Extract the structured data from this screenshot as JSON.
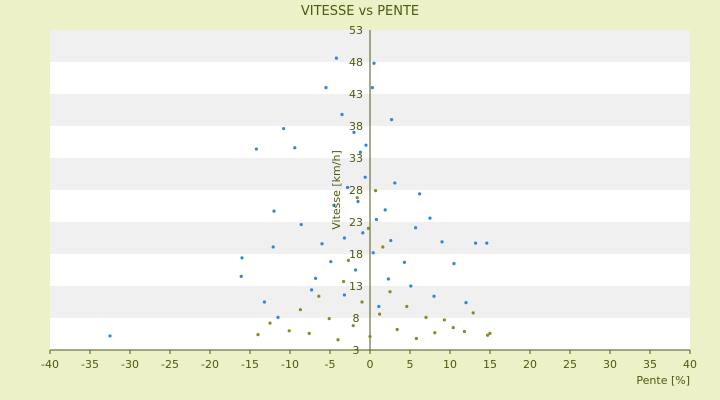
{
  "chart_data": {
    "type": "scatter",
    "title": "VITESSE vs PENTE",
    "xlabel": "Pente [%]",
    "ylabel": "Vitesse [km/h]",
    "xlim": [
      -40,
      40
    ],
    "ylim": [
      3,
      53
    ],
    "x_ticks": [
      "-40",
      "-35",
      "-30",
      "-25",
      "-20",
      "-15",
      "-10",
      "-5",
      "0",
      "5",
      "10",
      "15",
      "20",
      "25",
      "30",
      "35",
      "40"
    ],
    "y_ticks": [
      "3",
      "8",
      "13",
      "18",
      "23",
      "28",
      "33",
      "38",
      "43",
      "48",
      "53"
    ],
    "grid": "horizontal bands",
    "legend": "none",
    "colors": {
      "background": "#ecf1c8",
      "plot_band_light": "#ffffff",
      "plot_band_dark": "#f0f0f0",
      "axis": "#4c5a10",
      "series_blue": "#2f86d8",
      "series_olive": "#8a8a1c"
    },
    "series": [
      {
        "color": "#2f86d8",
        "points": [
          [
            -32.5,
            5.2
          ],
          [
            -14.2,
            34.4
          ],
          [
            -11.5,
            8.1
          ],
          [
            -10.8,
            37.6
          ],
          [
            -9.4,
            34.6
          ],
          [
            -6.8,
            14.2
          ],
          [
            -5.5,
            44.0
          ],
          [
            -4.2,
            48.6
          ],
          [
            -3.5,
            39.8
          ],
          [
            -2.0,
            37.0
          ],
          [
            -1.2,
            33.9
          ],
          [
            -0.5,
            35.0
          ],
          [
            0.5,
            47.8
          ],
          [
            0.3,
            44.0
          ],
          [
            2.7,
            39.0
          ],
          [
            -16.0,
            17.4
          ],
          [
            -16.1,
            14.5
          ],
          [
            -13.2,
            10.5
          ],
          [
            -12.0,
            24.7
          ],
          [
            -12.1,
            19.1
          ],
          [
            -8.6,
            22.6
          ],
          [
            -4.9,
            16.8
          ],
          [
            -3.2,
            20.5
          ],
          [
            -1.5,
            26.2
          ],
          [
            0.8,
            23.4
          ],
          [
            2.6,
            20.1
          ],
          [
            4.3,
            16.7
          ],
          [
            6.2,
            27.4
          ],
          [
            7.5,
            23.6
          ],
          [
            9.0,
            19.9
          ],
          [
            10.5,
            16.5
          ],
          [
            13.2,
            19.7
          ],
          [
            14.6,
            19.7
          ],
          [
            -3.2,
            11.6
          ],
          [
            1.1,
            9.8
          ],
          [
            5.1,
            13.0
          ],
          [
            8.0,
            11.4
          ],
          [
            12.0,
            10.4
          ],
          [
            -0.6,
            30.0
          ],
          [
            -2.8,
            28.4
          ],
          [
            3.1,
            29.1
          ],
          [
            -4.5,
            25.6
          ],
          [
            1.9,
            24.9
          ],
          [
            -0.9,
            21.3
          ],
          [
            0.4,
            18.2
          ],
          [
            -1.8,
            15.5
          ],
          [
            2.3,
            14.1
          ],
          [
            -6.0,
            19.6
          ],
          [
            5.7,
            22.1
          ],
          [
            -7.3,
            12.4
          ]
        ]
      },
      {
        "color": "#8a8a1c",
        "points": [
          [
            -14.0,
            5.4
          ],
          [
            -12.5,
            7.2
          ],
          [
            -10.1,
            6.0
          ],
          [
            -8.7,
            9.3
          ],
          [
            -7.6,
            5.6
          ],
          [
            -6.4,
            11.4
          ],
          [
            -5.1,
            7.9
          ],
          [
            -4.0,
            4.6
          ],
          [
            -3.3,
            13.7
          ],
          [
            -2.1,
            6.8
          ],
          [
            -1.0,
            10.5
          ],
          [
            0.0,
            5.1
          ],
          [
            1.2,
            8.6
          ],
          [
            2.5,
            12.1
          ],
          [
            3.4,
            6.2
          ],
          [
            4.6,
            9.8
          ],
          [
            5.8,
            4.8
          ],
          [
            7.0,
            8.1
          ],
          [
            8.1,
            5.7
          ],
          [
            9.3,
            7.7
          ],
          [
            10.4,
            6.5
          ],
          [
            11.8,
            5.9
          ],
          [
            12.9,
            8.8
          ],
          [
            14.7,
            5.3
          ],
          [
            15.0,
            5.6
          ],
          [
            -1.6,
            26.8
          ],
          [
            0.7,
            27.9
          ],
          [
            -0.2,
            22.0
          ],
          [
            1.6,
            19.1
          ],
          [
            -2.7,
            17.0
          ]
        ]
      }
    ]
  }
}
